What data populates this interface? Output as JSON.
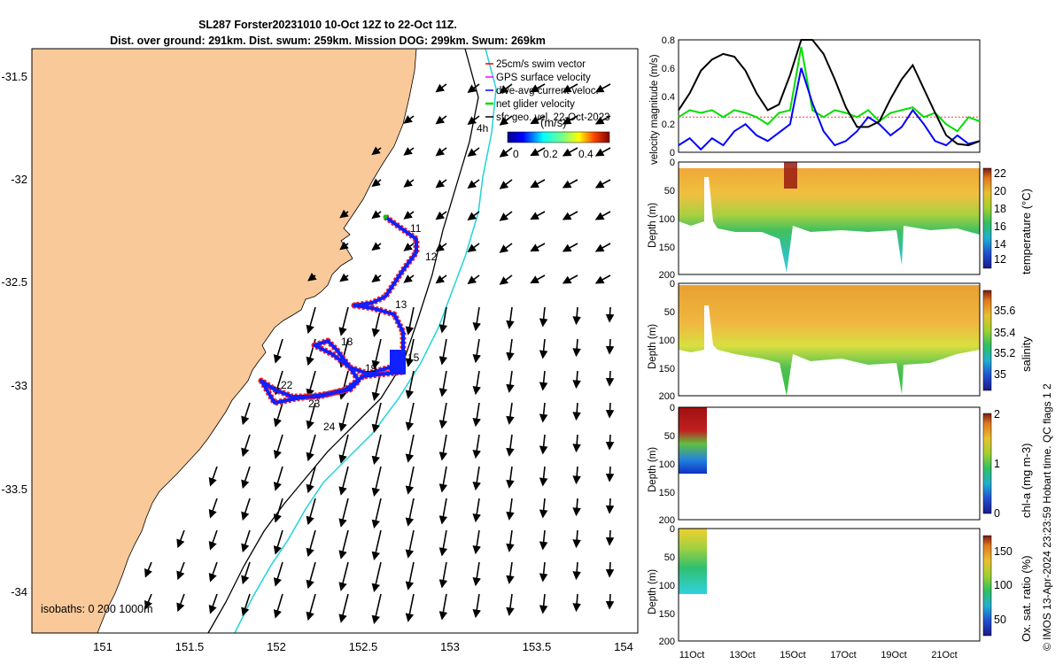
{
  "title": {
    "line1": "SL287 Forster20231010 10-Oct 12Z to 22-Oct 11Z.",
    "line2": "Dist. over ground: 291km. Dist. swum: 259km. Mission DOG: 299km. Swum: 269km"
  },
  "map": {
    "lat_ticks": [
      "-31.5",
      "-32",
      "-32.5",
      "-33",
      "-33.5",
      "-34"
    ],
    "lon_ticks": [
      "151",
      "151.5",
      "152",
      "152.5",
      "153",
      "153.5",
      "154"
    ],
    "legend": {
      "items": [
        {
          "label": "25cm/s swim vector",
          "color": "#ff0000"
        },
        {
          "label": "GPS surface velocity",
          "color": "#ff00ff"
        },
        {
          "label": "dive-avg current veloc.",
          "color": "#0000ff"
        },
        {
          "label": "net glider velocity",
          "color": "#00dd00"
        },
        {
          "label": "sfc geo. vel. 22-Oct-2023",
          "color": "#000000"
        }
      ],
      "colorbar_label": "(m/s)",
      "colorbar_ticks": [
        "0",
        "0.2",
        "0.4"
      ]
    },
    "isobaths_label": "isobaths: 0   200  1000m",
    "track_labels": [
      "11",
      "12",
      "13",
      "15",
      "18",
      "19",
      "22",
      "23",
      "24",
      "4h"
    ],
    "colors": {
      "land": "#f9c99a",
      "sea": "#ffffff",
      "isobath_200": "#000000",
      "isobath_1000": "#22d3d8",
      "track": "#0000ff",
      "swim": "#ff0000"
    }
  },
  "velocity_panel": {
    "ylabel": "velocity magnitude (m/s)",
    "yticks": [
      "0",
      "0.2",
      "0.4",
      "0.6",
      "0.8"
    ],
    "series": [
      {
        "name": "sfc geo. vel.",
        "color": "#000000",
        "values": [
          0.3,
          0.42,
          0.58,
          0.66,
          0.7,
          0.68,
          0.58,
          0.42,
          0.3,
          0.34,
          0.55,
          0.8,
          0.82,
          0.7,
          0.52,
          0.32,
          0.18,
          0.18,
          0.22,
          0.38,
          0.52,
          0.62,
          0.45,
          0.28,
          0.12,
          0.06,
          0.05,
          0.08
        ]
      },
      {
        "name": "dive-avg current veloc.",
        "color": "#0000ff",
        "values": [
          0.05,
          0.1,
          0.02,
          0.1,
          0.05,
          0.15,
          0.2,
          0.12,
          0.08,
          0.14,
          0.2,
          0.6,
          0.35,
          0.15,
          0.05,
          0.08,
          0.15,
          0.25,
          0.2,
          0.12,
          0.18,
          0.3,
          0.2,
          0.08,
          0.05,
          0.12,
          0.06,
          0.08
        ]
      },
      {
        "name": "net glider velocity",
        "color": "#00dd00",
        "values": [
          0.25,
          0.3,
          0.28,
          0.3,
          0.25,
          0.3,
          0.28,
          0.25,
          0.2,
          0.28,
          0.3,
          0.75,
          0.3,
          0.25,
          0.3,
          0.28,
          0.25,
          0.3,
          0.22,
          0.28,
          0.3,
          0.32,
          0.25,
          0.28,
          0.2,
          0.15,
          0.25,
          0.22
        ]
      },
      {
        "name": "25cm/s swim vector",
        "color": "#ff3333",
        "values": [
          0.25,
          0.25,
          0.25,
          0.25,
          0.25,
          0.25,
          0.25,
          0.25,
          0.25,
          0.25,
          0.25,
          0.25,
          0.25,
          0.25,
          0.25,
          0.25,
          0.25,
          0.25,
          0.25,
          0.25,
          0.25,
          0.25,
          0.25,
          0.25,
          0.25,
          0.25,
          0.25,
          0.25
        ]
      }
    ]
  },
  "section_panels": [
    {
      "id": "temperature",
      "ylabel": "Depth (m)",
      "colorbar_label": "temperature (°C)",
      "cticks": [
        "22",
        "20",
        "18",
        "16",
        "14",
        "12"
      ]
    },
    {
      "id": "salinity",
      "ylabel": "Depth (m)",
      "colorbar_label": "salinity",
      "cticks": [
        "35.6",
        "35.4",
        "35.2",
        "35"
      ]
    },
    {
      "id": "chla",
      "ylabel": "Depth (m)",
      "colorbar_label": "chl-a (mg m-3)",
      "cticks": [
        "2",
        "1",
        "0"
      ]
    },
    {
      "id": "oxygen",
      "ylabel": "Depth (m)",
      "colorbar_label": "Ox. sat. ratio (%)",
      "cticks": [
        "150",
        "100",
        "50"
      ]
    }
  ],
  "depth_ticks": [
    "0",
    "50",
    "100",
    "150",
    "200"
  ],
  "time_ticks": [
    "11Oct",
    "13Oct",
    "15Oct",
    "17Oct",
    "19Oct",
    "21Oct"
  ],
  "credit": "© IMOS 13-Apr-2024 23:23:59 Hobart time. QC flags 1  2"
}
